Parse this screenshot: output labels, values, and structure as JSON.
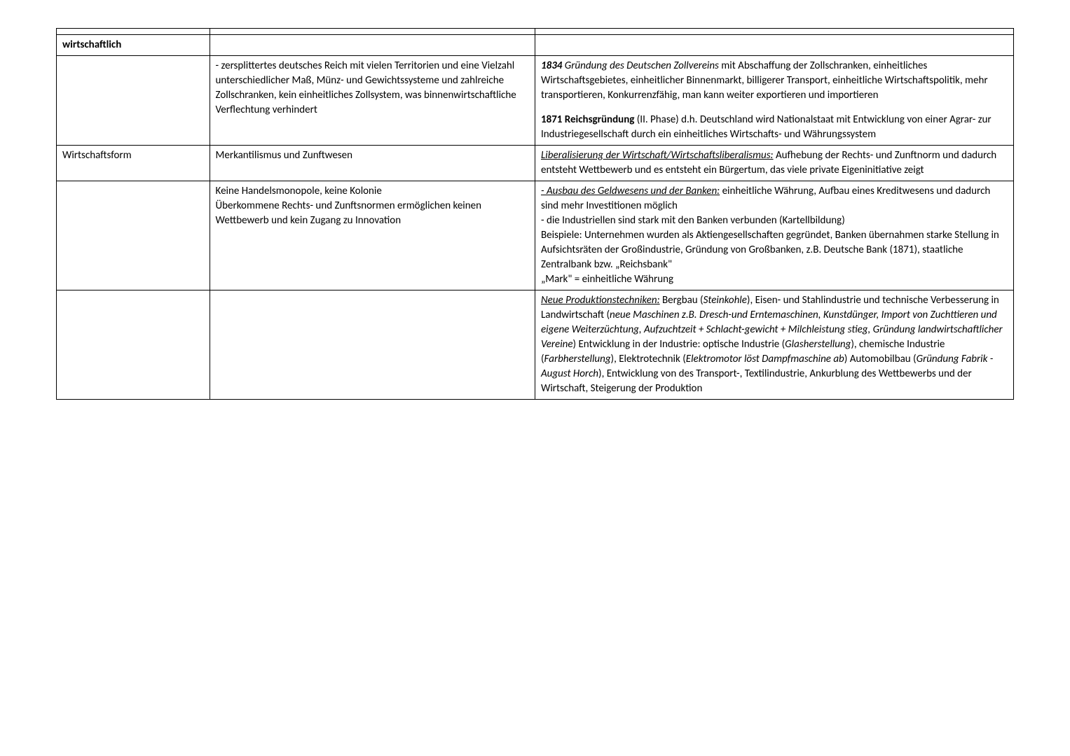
{
  "rows": {
    "r0": {
      "c1": "",
      "c2": "",
      "c3": ""
    },
    "r1": {
      "c1": "wirtschaftlich",
      "c2": "",
      "c3": ""
    },
    "r2": {
      "c1": "",
      "c2": "- zersplittertes deutsches Reich mit vielen Territorien und eine Vielzahl unterschiedlicher Maß, Münz- und Gewichtssysteme und zahlreiche Zollschranken, kein einheitliches Zollsystem, was binnenwirtschaftliche Verflechtung verhindert",
      "c3_p1_a": "1834",
      "c3_p1_b": " Gründung des Deutschen Zollvereins",
      "c3_p1_c": " mit Abschaffung der Zollschranken, einheitliches Wirtschaftsgebietes, einheitlicher Binnenmarkt, billigerer Transport, einheitliche Wirtschaftspolitik, mehr transportieren, Konkurrenzfähig, man kann weiter exportieren und importieren",
      "c3_p2_a": "1871 Reichsgründung",
      "c3_p2_b": " (II. Phase) d.h. Deutschland wird Nationalstaat mit Entwicklung von einer Agrar- zur Industriegesellschaft durch ein einheitliches Wirtschafts- und Währungssystem"
    },
    "r3": {
      "c1": "Wirtschaftsform",
      "c2": "Merkantilismus und Zunftwesen",
      "c3_a": "Liberalisierung der Wirtschaft/Wirtschaftsliberalismus:",
      "c3_b": " Aufhebung der Rechts- und Zunftnorm und dadurch entsteht Wettbewerb und es entsteht ein Bürgertum, das viele private Eigeninitiative zeigt"
    },
    "r4": {
      "c1": "",
      "c2": "Keine Handelsmonopole, keine Kolonie\nÜberkommene Rechts- und Zunftsnormen ermöglichen keinen Wettbewerb und kein Zugang zu Innovation",
      "c3_a": "- Ausbau des Geldwesens und der Banken:",
      "c3_b": " einheitliche Währung, Aufbau eines Kreditwesens und dadurch sind mehr Investitionen möglich",
      "c3_c": "- die Industriellen sind stark mit den Banken verbunden (Kartellbildung)",
      "c3_d": "Beispiele: Unternehmen wurden als Aktiengesellschaften gegründet, Banken übernahmen starke Stellung in Aufsichtsräten der Großindustrie, Gründung von Großbanken, z.B. Deutsche Bank (1871), staatliche Zentralbank bzw. „Reichsbank\"",
      "c3_e": "„Mark\" = einheitliche Währung"
    },
    "r5": {
      "c1": "",
      "c2": "",
      "c3_a": "Neue Produktionstechniken:",
      "c3_b": " Bergbau (",
      "c3_c": "Steinkohle",
      "c3_d": "), Eisen- und Stahlindustrie und technische Verbesserung in Landwirtschaft (",
      "c3_e": "neue Maschinen z.B. Dresch-und Erntemaschinen, Kunstdünger, Import von Zuchttieren und eigene Weiterzüchtung, Aufzuchtzeit + Schlacht-gewicht + Milchleistung stieg, Gründung landwirtschaftlicher Vereine",
      "c3_f": ") Entwicklung in der Industrie: optische Industrie (",
      "c3_g": "Glasherstellung",
      "c3_h": "), chemische Industrie (",
      "c3_i": "Farbherstellung",
      "c3_j": "), Elektrotechnik (",
      "c3_k": "Elektromotor löst Dampfmaschine ab",
      "c3_l": ") Automobilbau (",
      "c3_m": "Gründung Fabrik - August Horch",
      "c3_n": "), Entwicklung von des Transport-, Textilindustrie, Ankurblung des Wettbewerbs und der Wirtschaft, Steigerung der Produktion"
    }
  }
}
